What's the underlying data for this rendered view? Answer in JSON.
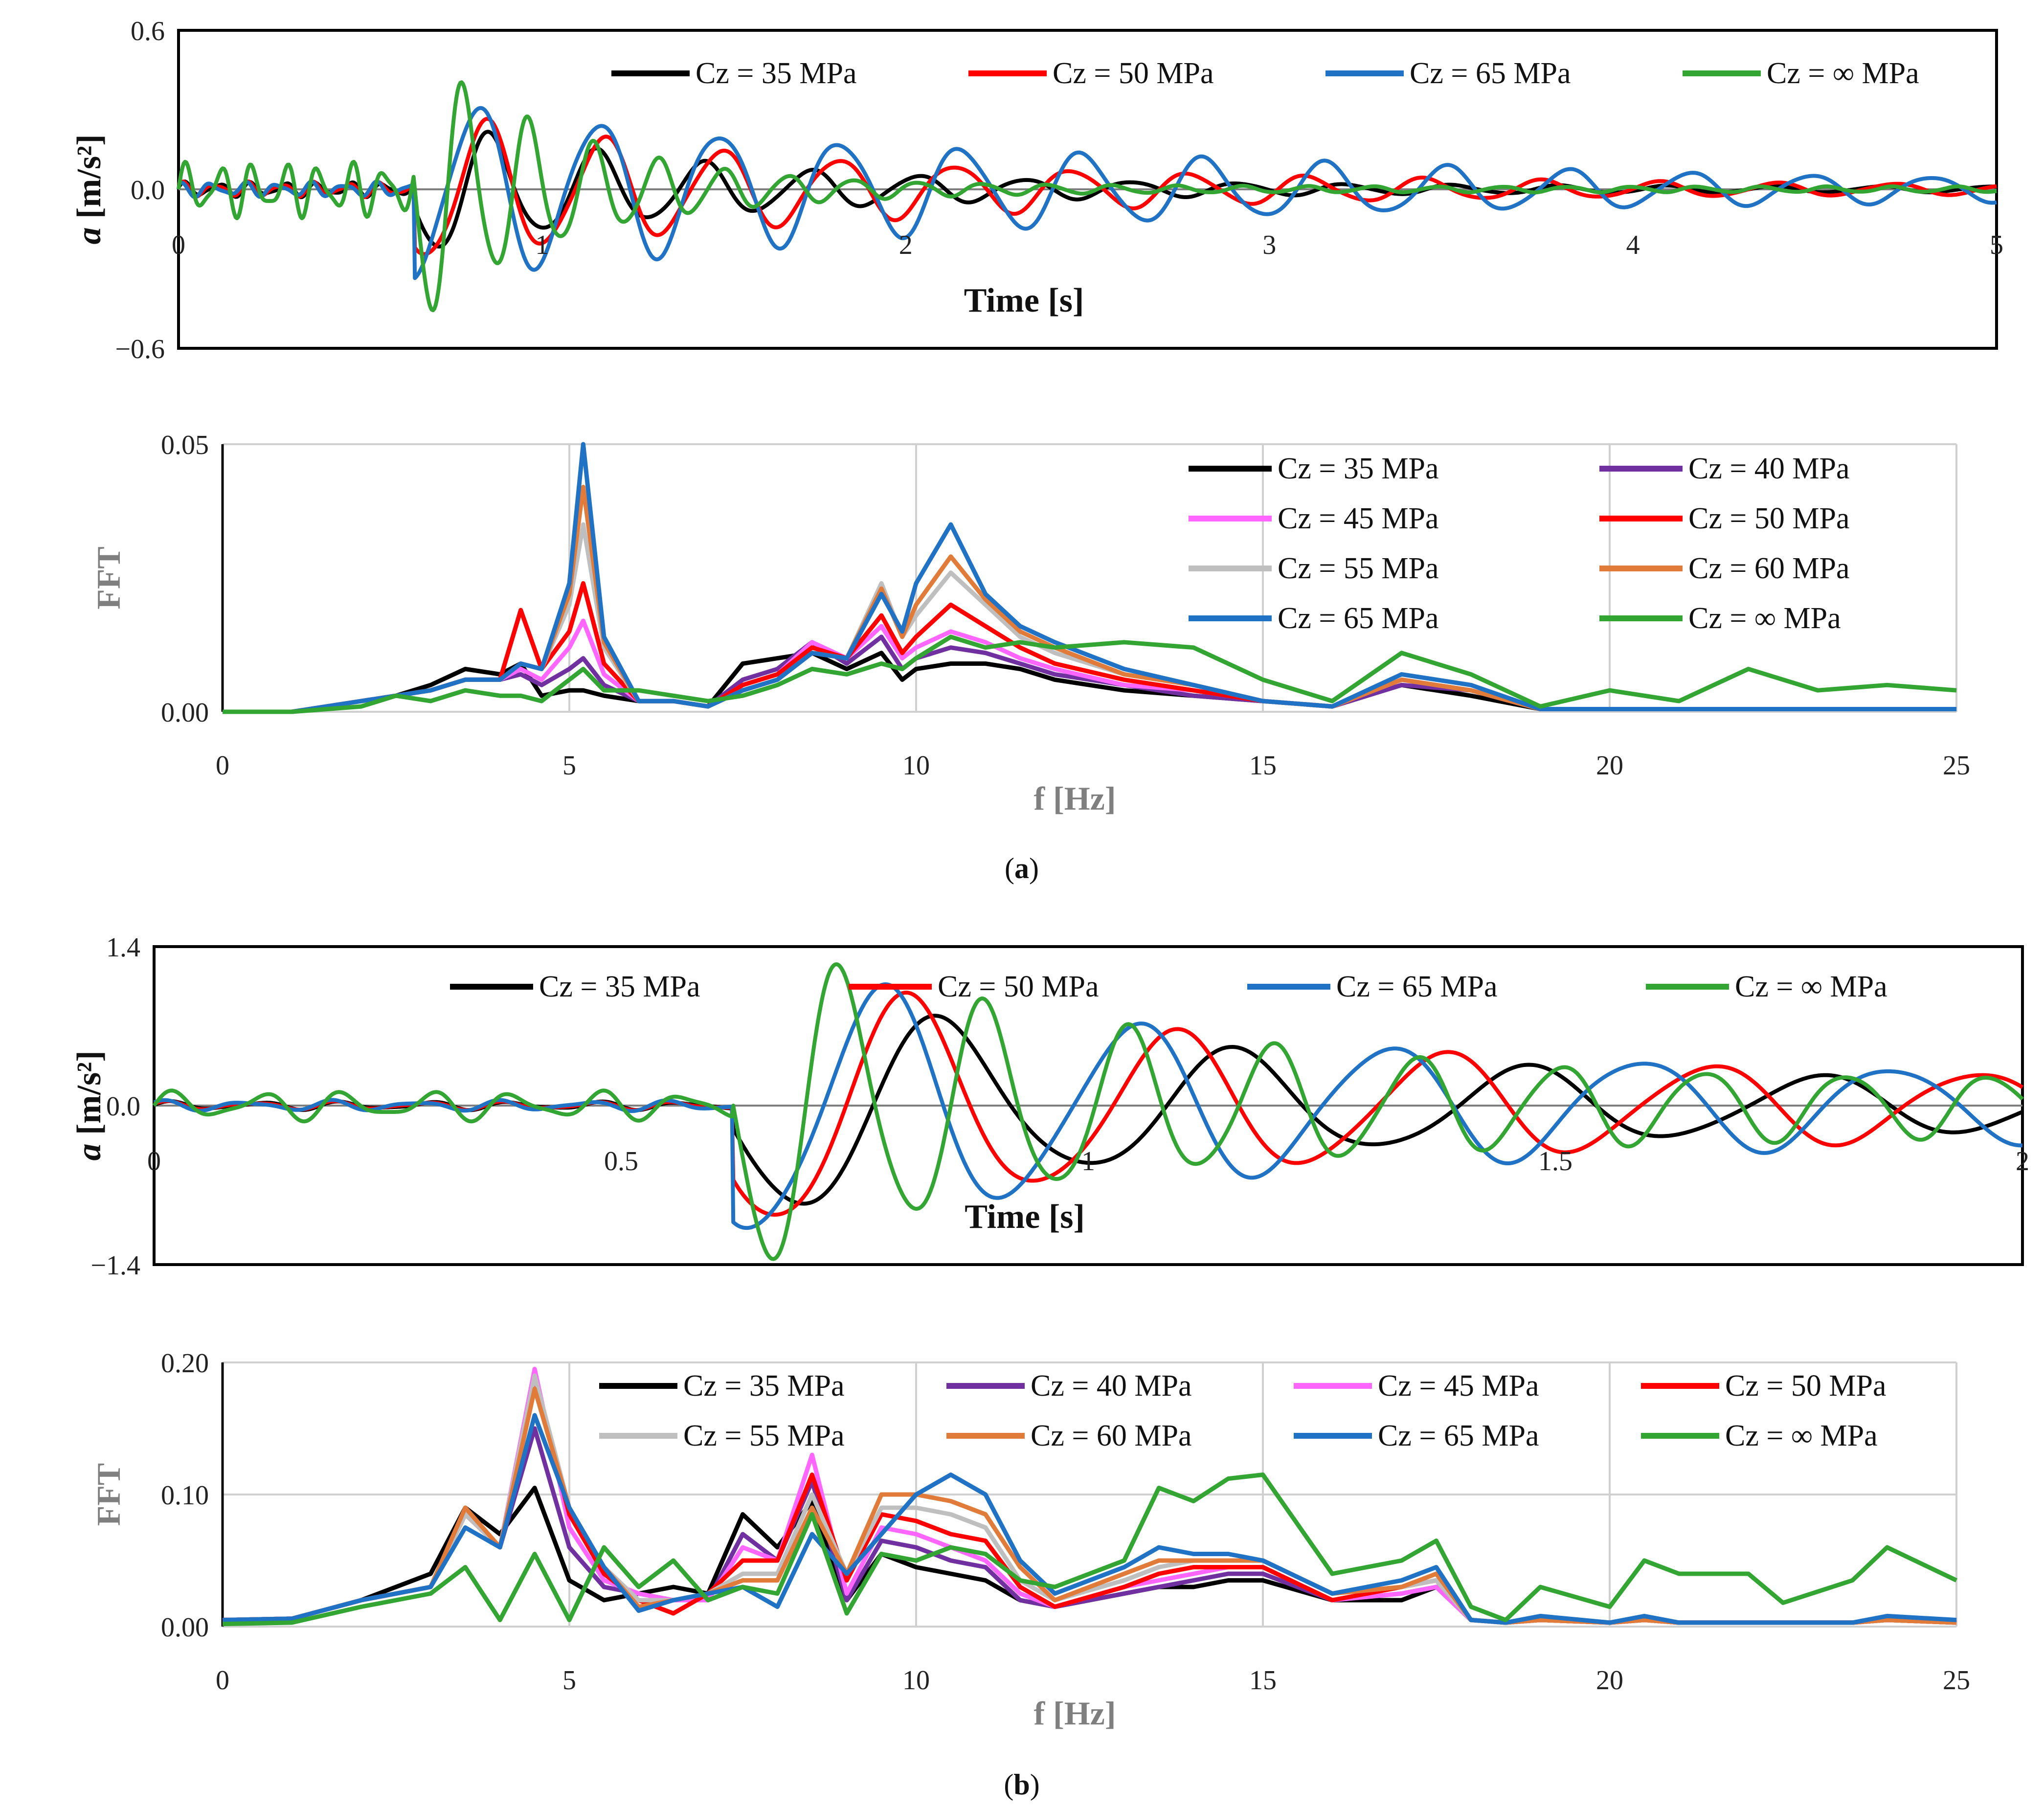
{
  "figure_captions": {
    "a_open": "(",
    "a_letter": "a",
    "a_close": ")",
    "b_open": "(",
    "b_letter": "b",
    "b_close": ")"
  },
  "colors": {
    "cz35": "#000000",
    "cz40": "#7030a0",
    "cz45": "#ff66ff",
    "cz50": "#ff0000",
    "cz55": "#bfbfbf",
    "cz60": "#e07b39",
    "cz65": "#1f72c4",
    "czinf": "#33a532",
    "grid": "#d0d0d0",
    "frame": "#000000"
  },
  "chart_data": [
    {
      "id": "a_time",
      "type": "line",
      "xlabel": "Time [s]",
      "ylabel_var": "a",
      "ylabel_unit": " [m/s²]",
      "xlim": [
        0,
        5
      ],
      "ylim": [
        -0.6,
        0.6
      ],
      "xticks": [
        "0",
        "1",
        "2",
        "3",
        "4",
        "5"
      ],
      "yticks": [
        "0.6",
        "0.0",
        "−0.6"
      ],
      "legend": [
        "Cz = 35 MPa",
        "Cz = 50 MPa",
        "Cz = 65 MPa",
        "Cz = ∞ MPa"
      ],
      "series": [
        {
          "name": "Cz = 35 MPa",
          "color_key": "cz35",
          "signal": {
            "t0": 0.65,
            "amp": 0.24,
            "f": 3.4,
            "decay": 1.25,
            "pre": 0.03,
            "phase": 0.3,
            "tail": 0.04
          }
        },
        {
          "name": "Cz = 50 MPa",
          "color_key": "cz50",
          "signal": {
            "t0": 0.65,
            "amp": 0.27,
            "f": 3.1,
            "decay": 0.8,
            "pre": 0.03,
            "phase": 0.9,
            "tail": 0.04
          }
        },
        {
          "name": "Cz = 65 MPa",
          "color_key": "cz65",
          "signal": {
            "t0": 0.65,
            "amp": 0.32,
            "f": 3.0,
            "decay": 0.55,
            "pre": 0.03,
            "phase": 1.5,
            "tail": 0.05
          }
        },
        {
          "name": "Cz = ∞ MPa",
          "color_key": "czinf",
          "signal": {
            "t0": 0.65,
            "amp": 0.5,
            "f": 5.6,
            "decay": 2.4,
            "pre": 0.11,
            "phase": 0.0,
            "tail": 0.02
          }
        }
      ]
    },
    {
      "id": "a_fft",
      "type": "line",
      "xlabel": "f [Hz]",
      "ylabel": "FFT",
      "xlim": [
        0,
        25
      ],
      "ylim": [
        0,
        0.05
      ],
      "xticks": [
        "0",
        "5",
        "10",
        "15",
        "20",
        "25"
      ],
      "yticks": [
        "0.05",
        "0.00"
      ],
      "legend": [
        "Cz = 35 MPa",
        "Cz = 40 MPa",
        "Cz = 45 MPa",
        "Cz = 50 MPa",
        "Cz = 55 MPa",
        "Cz = 60 MPa",
        "Cz = 65 MPa",
        "Cz = ∞ MPa"
      ],
      "x": [
        0,
        1,
        2,
        2.5,
        3,
        3.5,
        4,
        4.3,
        4.6,
        5,
        5.2,
        5.5,
        6,
        6.5,
        7,
        7.5,
        8,
        8.5,
        9,
        9.5,
        9.8,
        10,
        10.5,
        11,
        11.5,
        12,
        13,
        14,
        15,
        16,
        17,
        18,
        19,
        20,
        21,
        22,
        23,
        24,
        25
      ],
      "series": [
        {
          "name": "Cz = 35 MPa",
          "color_key": "cz35",
          "values": [
            0,
            0,
            0.002,
            0.003,
            0.005,
            0.008,
            0.007,
            0.009,
            0.003,
            0.004,
            0.004,
            0.003,
            0.002,
            0.002,
            0.001,
            0.009,
            0.01,
            0.011,
            0.008,
            0.011,
            0.006,
            0.008,
            0.009,
            0.009,
            0.008,
            0.006,
            0.004,
            0.003,
            0.002,
            0.001,
            0.005,
            0.003,
            0.0005,
            0.0005,
            0.0005,
            0.0005,
            0.0005,
            0.0005,
            0.0005
          ]
        },
        {
          "name": "Cz = 40 MPa",
          "color_key": "cz40",
          "values": [
            0,
            0,
            0.002,
            0.003,
            0.004,
            0.006,
            0.006,
            0.007,
            0.005,
            0.008,
            0.01,
            0.005,
            0.002,
            0.002,
            0.001,
            0.006,
            0.008,
            0.013,
            0.009,
            0.014,
            0.008,
            0.01,
            0.012,
            0.011,
            0.009,
            0.007,
            0.005,
            0.003,
            0.002,
            0.001,
            0.005,
            0.004,
            0.0005,
            0.0005,
            0.0005,
            0.0005,
            0.0005,
            0.0005,
            0.0005
          ]
        },
        {
          "name": "Cz = 45 MPa",
          "color_key": "cz45",
          "values": [
            0,
            0,
            0.002,
            0.003,
            0.004,
            0.006,
            0.006,
            0.008,
            0.006,
            0.012,
            0.017,
            0.007,
            0.002,
            0.002,
            0.001,
            0.005,
            0.007,
            0.013,
            0.01,
            0.016,
            0.01,
            0.012,
            0.015,
            0.013,
            0.01,
            0.008,
            0.005,
            0.004,
            0.002,
            0.001,
            0.006,
            0.004,
            0.0005,
            0.0005,
            0.0005,
            0.0005,
            0.0005,
            0.0005,
            0.0005
          ]
        },
        {
          "name": "Cz = 50 MPa",
          "color_key": "cz50",
          "values": [
            0,
            0,
            0.002,
            0.003,
            0.004,
            0.006,
            0.006,
            0.019,
            0.008,
            0.015,
            0.024,
            0.009,
            0.002,
            0.002,
            0.001,
            0.005,
            0.007,
            0.012,
            0.01,
            0.018,
            0.011,
            0.014,
            0.02,
            0.016,
            0.012,
            0.009,
            0.006,
            0.004,
            0.002,
            0.001,
            0.006,
            0.004,
            0.0005,
            0.0005,
            0.0005,
            0.0005,
            0.0005,
            0.0005,
            0.0005
          ]
        },
        {
          "name": "Cz = 55 MPa",
          "color_key": "cz55",
          "values": [
            0,
            0,
            0.002,
            0.003,
            0.004,
            0.006,
            0.006,
            0.009,
            0.008,
            0.02,
            0.035,
            0.012,
            0.002,
            0.002,
            0.001,
            0.004,
            0.006,
            0.011,
            0.01,
            0.024,
            0.014,
            0.018,
            0.026,
            0.02,
            0.014,
            0.011,
            0.007,
            0.005,
            0.002,
            0.001,
            0.006,
            0.004,
            0.0005,
            0.0005,
            0.0005,
            0.0005,
            0.0005,
            0.0005,
            0.0005
          ]
        },
        {
          "name": "Cz = 60 MPa",
          "color_key": "cz60",
          "values": [
            0,
            0,
            0.002,
            0.003,
            0.004,
            0.006,
            0.006,
            0.009,
            0.008,
            0.022,
            0.042,
            0.013,
            0.002,
            0.002,
            0.001,
            0.004,
            0.006,
            0.011,
            0.01,
            0.023,
            0.014,
            0.02,
            0.029,
            0.021,
            0.015,
            0.012,
            0.007,
            0.005,
            0.002,
            0.001,
            0.006,
            0.004,
            0.0005,
            0.0005,
            0.0005,
            0.0005,
            0.0005,
            0.0005,
            0.0005
          ]
        },
        {
          "name": "Cz = 65 MPa",
          "color_key": "cz65",
          "values": [
            0,
            0,
            0.002,
            0.003,
            0.004,
            0.006,
            0.006,
            0.009,
            0.008,
            0.024,
            0.05,
            0.014,
            0.002,
            0.002,
            0.001,
            0.004,
            0.006,
            0.011,
            0.01,
            0.022,
            0.015,
            0.024,
            0.035,
            0.022,
            0.016,
            0.013,
            0.008,
            0.005,
            0.002,
            0.001,
            0.007,
            0.005,
            0.0005,
            0.0005,
            0.0005,
            0.0005,
            0.0005,
            0.0005,
            0.0005
          ]
        },
        {
          "name": "Cz = ∞ MPa",
          "color_key": "czinf",
          "values": [
            0,
            0,
            0.001,
            0.003,
            0.002,
            0.004,
            0.003,
            0.003,
            0.002,
            0.006,
            0.008,
            0.004,
            0.004,
            0.003,
            0.002,
            0.003,
            0.005,
            0.008,
            0.007,
            0.009,
            0.008,
            0.01,
            0.014,
            0.012,
            0.013,
            0.012,
            0.013,
            0.012,
            0.006,
            0.002,
            0.011,
            0.007,
            0.001,
            0.004,
            0.002,
            0.008,
            0.004,
            0.005,
            0.004
          ]
        }
      ]
    },
    {
      "id": "b_time",
      "type": "line",
      "xlabel": "Time [s]",
      "ylabel_var": "a",
      "ylabel_unit": " [m/s²]",
      "xlim": [
        0,
        2
      ],
      "ylim": [
        -1.4,
        1.4
      ],
      "xticks": [
        "0",
        "0.5",
        "1",
        "1.5",
        "2"
      ],
      "yticks": [
        "1.4",
        "0.0",
        "−1.4"
      ],
      "legend": [
        "Cz = 35 MPa",
        "Cz = 50 MPa",
        "Cz = 65 MPa",
        "Cz = ∞ MPa"
      ],
      "series": [
        {
          "name": "Cz = 35 MPa",
          "color_key": "cz35",
          "signal": {
            "t0": 0.62,
            "amp": 0.85,
            "f": 3.2,
            "decay": 2.0,
            "pre": 0.04,
            "phase": 0.2,
            "tail": 0.2
          }
        },
        {
          "name": "Cz = 50 MPa",
          "color_key": "cz50",
          "signal": {
            "t0": 0.62,
            "amp": 0.95,
            "f": 3.5,
            "decay": 1.8,
            "pre": 0.04,
            "phase": 0.6,
            "tail": 0.22
          }
        },
        {
          "name": "Cz = 65 MPa",
          "color_key": "cz65",
          "signal": {
            "t0": 0.62,
            "amp": 1.0,
            "f": 3.7,
            "decay": 1.7,
            "pre": 0.05,
            "phase": 1.0,
            "tail": 0.22
          }
        },
        {
          "name": "Cz = ∞ MPa",
          "color_key": "czinf",
          "signal": {
            "t0": 0.62,
            "amp": 1.25,
            "f": 6.5,
            "decay": 2.6,
            "pre": 0.14,
            "phase": 0.0,
            "tail": 0.18
          }
        }
      ]
    },
    {
      "id": "b_fft",
      "type": "line",
      "xlabel": "f [Hz]",
      "ylabel": "FFT",
      "xlim": [
        0,
        25
      ],
      "ylim": [
        0,
        0.2
      ],
      "xticks": [
        "0",
        "5",
        "10",
        "15",
        "20",
        "25"
      ],
      "yticks": [
        "0.20",
        "0.10",
        "0.00"
      ],
      "legend": [
        "Cz = 35 MPa",
        "Cz = 40 MPa",
        "Cz = 45 MPa",
        "Cz = 50 MPa",
        "Cz = 55 MPa",
        "Cz = 60 MPa",
        "Cz = 65 MPa",
        "Cz = ∞ MPa"
      ],
      "x": [
        0,
        1,
        2,
        3,
        3.5,
        4,
        4.5,
        5,
        5.5,
        6,
        6.5,
        7,
        7.5,
        8,
        8.5,
        9,
        9.5,
        10,
        10.5,
        11,
        11.5,
        12,
        13,
        13.5,
        14,
        14.5,
        15,
        16,
        17,
        17.5,
        18,
        18.5,
        19,
        20,
        20.5,
        21,
        22,
        22.5,
        23.5,
        24,
        25
      ],
      "series": [
        {
          "name": "Cz = 35 MPa",
          "color_key": "cz35",
          "values": [
            0.005,
            0.006,
            0.02,
            0.04,
            0.09,
            0.07,
            0.105,
            0.035,
            0.02,
            0.025,
            0.03,
            0.025,
            0.085,
            0.06,
            0.095,
            0.02,
            0.055,
            0.045,
            0.04,
            0.035,
            0.02,
            0.015,
            0.025,
            0.03,
            0.03,
            0.035,
            0.035,
            0.02,
            0.02,
            0.03,
            0.005,
            0.003,
            0.005,
            0.003,
            0.005,
            0.003,
            0.003,
            0.003,
            0.003,
            0.005,
            0.003
          ]
        },
        {
          "name": "Cz = 40 MPa",
          "color_key": "cz40",
          "values": [
            0.005,
            0.006,
            0.02,
            0.03,
            0.085,
            0.06,
            0.15,
            0.06,
            0.03,
            0.025,
            0.02,
            0.02,
            0.07,
            0.05,
            0.11,
            0.02,
            0.065,
            0.06,
            0.05,
            0.045,
            0.02,
            0.015,
            0.025,
            0.03,
            0.035,
            0.04,
            0.04,
            0.02,
            0.025,
            0.03,
            0.005,
            0.003,
            0.005,
            0.003,
            0.005,
            0.003,
            0.003,
            0.003,
            0.003,
            0.005,
            0.003
          ]
        },
        {
          "name": "Cz = 45 MPa",
          "color_key": "cz45",
          "values": [
            0.005,
            0.006,
            0.02,
            0.03,
            0.085,
            0.06,
            0.195,
            0.075,
            0.035,
            0.025,
            0.02,
            0.02,
            0.06,
            0.05,
            0.13,
            0.025,
            0.075,
            0.07,
            0.06,
            0.05,
            0.025,
            0.015,
            0.03,
            0.035,
            0.04,
            0.045,
            0.045,
            0.02,
            0.025,
            0.03,
            0.005,
            0.003,
            0.005,
            0.003,
            0.005,
            0.003,
            0.003,
            0.003,
            0.003,
            0.005,
            0.003
          ]
        },
        {
          "name": "Cz = 50 MPa",
          "color_key": "cz50",
          "values": [
            0.005,
            0.006,
            0.02,
            0.03,
            0.085,
            0.06,
            0.185,
            0.085,
            0.04,
            0.02,
            0.01,
            0.025,
            0.05,
            0.05,
            0.115,
            0.035,
            0.085,
            0.08,
            0.07,
            0.065,
            0.03,
            0.015,
            0.03,
            0.04,
            0.045,
            0.045,
            0.045,
            0.02,
            0.03,
            0.035,
            0.005,
            0.003,
            0.005,
            0.003,
            0.005,
            0.003,
            0.003,
            0.003,
            0.003,
            0.005,
            0.003
          ]
        },
        {
          "name": "Cz = 55 MPa",
          "color_key": "cz55",
          "values": [
            0.005,
            0.006,
            0.02,
            0.03,
            0.085,
            0.06,
            0.19,
            0.09,
            0.045,
            0.02,
            0.02,
            0.025,
            0.04,
            0.04,
            0.1,
            0.04,
            0.09,
            0.09,
            0.085,
            0.075,
            0.035,
            0.02,
            0.035,
            0.045,
            0.05,
            0.05,
            0.05,
            0.025,
            0.03,
            0.035,
            0.005,
            0.003,
            0.005,
            0.003,
            0.005,
            0.003,
            0.003,
            0.003,
            0.003,
            0.005,
            0.003
          ]
        },
        {
          "name": "Cz = 60 MPa",
          "color_key": "cz60",
          "values": [
            0.005,
            0.006,
            0.02,
            0.03,
            0.09,
            0.06,
            0.18,
            0.09,
            0.045,
            0.015,
            0.02,
            0.025,
            0.035,
            0.035,
            0.09,
            0.04,
            0.1,
            0.1,
            0.095,
            0.085,
            0.045,
            0.02,
            0.04,
            0.05,
            0.05,
            0.05,
            0.05,
            0.025,
            0.03,
            0.04,
            0.005,
            0.003,
            0.005,
            0.003,
            0.005,
            0.003,
            0.003,
            0.003,
            0.003,
            0.005,
            0.003
          ]
        },
        {
          "name": "Cz = 65 MPa",
          "color_key": "cz65",
          "values": [
            0.005,
            0.006,
            0.02,
            0.03,
            0.075,
            0.06,
            0.16,
            0.09,
            0.045,
            0.012,
            0.02,
            0.025,
            0.03,
            0.015,
            0.07,
            0.04,
            0.07,
            0.1,
            0.115,
            0.1,
            0.05,
            0.025,
            0.045,
            0.06,
            0.055,
            0.055,
            0.05,
            0.025,
            0.035,
            0.045,
            0.005,
            0.003,
            0.008,
            0.003,
            0.008,
            0.003,
            0.003,
            0.003,
            0.003,
            0.008,
            0.005
          ]
        },
        {
          "name": "Cz = ∞ MPa",
          "color_key": "czinf",
          "values": [
            0.002,
            0.003,
            0.015,
            0.025,
            0.045,
            0.005,
            0.055,
            0.005,
            0.06,
            0.03,
            0.05,
            0.02,
            0.03,
            0.025,
            0.085,
            0.01,
            0.055,
            0.05,
            0.06,
            0.055,
            0.035,
            0.03,
            0.05,
            0.105,
            0.095,
            0.112,
            0.115,
            0.04,
            0.05,
            0.065,
            0.015,
            0.005,
            0.03,
            0.015,
            0.05,
            0.04,
            0.04,
            0.018,
            0.035,
            0.06,
            0.035
          ]
        }
      ]
    }
  ]
}
